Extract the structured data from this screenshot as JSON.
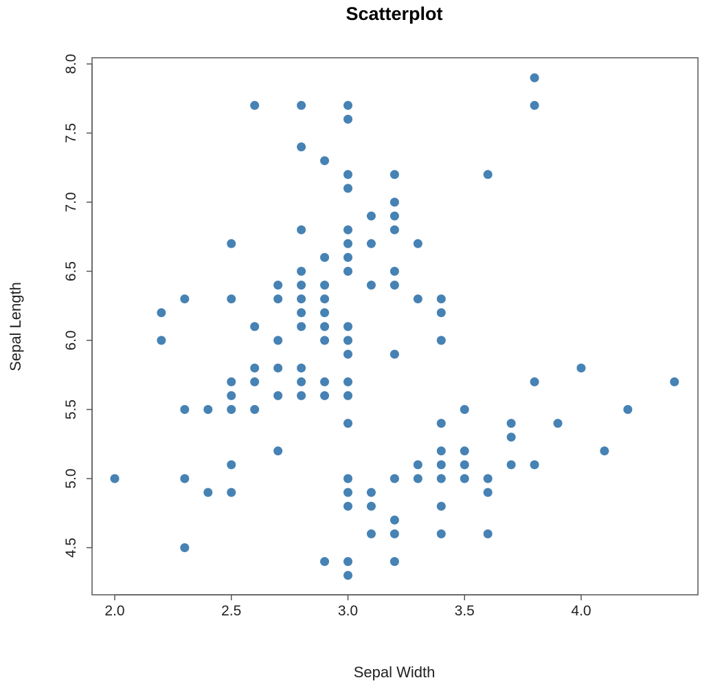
{
  "chart_data": {
    "type": "scatter",
    "title": "Scatterplot",
    "xlabel": "Sepal Width",
    "ylabel": "Sepal Length",
    "xlim": [
      1.9,
      4.5
    ],
    "ylim": [
      4.2,
      8.0
    ],
    "xticks": [
      2.0,
      2.5,
      3.0,
      3.5,
      4.0
    ],
    "xtick_labels": [
      "2.0",
      "2.5",
      "3.0",
      "3.5",
      "4.0"
    ],
    "yticks": [
      4.5,
      5.0,
      5.5,
      6.0,
      6.5,
      7.0,
      7.5,
      8.0
    ],
    "ytick_labels": [
      "4.5",
      "5.0",
      "5.5",
      "6.0",
      "6.5",
      "7.0",
      "7.5",
      "8.0"
    ],
    "grid": false,
    "color": "#4682b4",
    "points": [
      [
        2.0,
        5.0
      ],
      [
        2.2,
        6.2
      ],
      [
        2.2,
        6.0
      ],
      [
        2.3,
        6.3
      ],
      [
        2.3,
        5.5
      ],
      [
        2.3,
        5.0
      ],
      [
        2.3,
        4.5
      ],
      [
        2.4,
        5.5
      ],
      [
        2.4,
        4.9
      ],
      [
        2.5,
        6.7
      ],
      [
        2.5,
        6.3
      ],
      [
        2.5,
        5.7
      ],
      [
        2.5,
        5.6
      ],
      [
        2.5,
        5.5
      ],
      [
        2.5,
        5.1
      ],
      [
        2.5,
        4.9
      ],
      [
        2.6,
        7.7
      ],
      [
        2.6,
        6.1
      ],
      [
        2.6,
        5.8
      ],
      [
        2.6,
        5.7
      ],
      [
        2.6,
        5.5
      ],
      [
        2.7,
        6.4
      ],
      [
        2.7,
        6.3
      ],
      [
        2.7,
        6.0
      ],
      [
        2.7,
        5.8
      ],
      [
        2.7,
        5.6
      ],
      [
        2.7,
        5.2
      ],
      [
        2.8,
        7.7
      ],
      [
        2.8,
        7.4
      ],
      [
        2.8,
        6.8
      ],
      [
        2.8,
        6.5
      ],
      [
        2.8,
        6.4
      ],
      [
        2.8,
        6.3
      ],
      [
        2.8,
        6.2
      ],
      [
        2.8,
        6.1
      ],
      [
        2.8,
        5.8
      ],
      [
        2.8,
        5.7
      ],
      [
        2.8,
        5.6
      ],
      [
        2.9,
        7.3
      ],
      [
        2.9,
        6.6
      ],
      [
        2.9,
        6.4
      ],
      [
        2.9,
        6.3
      ],
      [
        2.9,
        6.2
      ],
      [
        2.9,
        6.1
      ],
      [
        2.9,
        6.0
      ],
      [
        2.9,
        5.7
      ],
      [
        2.9,
        5.6
      ],
      [
        2.9,
        4.4
      ],
      [
        3.0,
        7.7
      ],
      [
        3.0,
        7.6
      ],
      [
        3.0,
        7.2
      ],
      [
        3.0,
        7.1
      ],
      [
        3.0,
        6.8
      ],
      [
        3.0,
        6.7
      ],
      [
        3.0,
        6.6
      ],
      [
        3.0,
        6.5
      ],
      [
        3.0,
        6.1
      ],
      [
        3.0,
        6.0
      ],
      [
        3.0,
        5.9
      ],
      [
        3.0,
        5.7
      ],
      [
        3.0,
        5.6
      ],
      [
        3.0,
        5.4
      ],
      [
        3.0,
        5.0
      ],
      [
        3.0,
        4.9
      ],
      [
        3.0,
        4.8
      ],
      [
        3.0,
        4.4
      ],
      [
        3.0,
        4.3
      ],
      [
        3.1,
        6.9
      ],
      [
        3.1,
        6.7
      ],
      [
        3.1,
        6.4
      ],
      [
        3.1,
        4.9
      ],
      [
        3.1,
        4.8
      ],
      [
        3.1,
        4.6
      ],
      [
        3.2,
        7.2
      ],
      [
        3.2,
        7.0
      ],
      [
        3.2,
        6.9
      ],
      [
        3.2,
        6.8
      ],
      [
        3.2,
        6.5
      ],
      [
        3.2,
        6.4
      ],
      [
        3.2,
        5.9
      ],
      [
        3.2,
        5.0
      ],
      [
        3.2,
        4.7
      ],
      [
        3.2,
        4.6
      ],
      [
        3.2,
        4.4
      ],
      [
        3.3,
        6.7
      ],
      [
        3.3,
        6.3
      ],
      [
        3.3,
        5.1
      ],
      [
        3.3,
        5.0
      ],
      [
        3.4,
        6.3
      ],
      [
        3.4,
        6.2
      ],
      [
        3.4,
        6.0
      ],
      [
        3.4,
        5.4
      ],
      [
        3.4,
        5.2
      ],
      [
        3.4,
        5.1
      ],
      [
        3.4,
        5.0
      ],
      [
        3.4,
        4.8
      ],
      [
        3.4,
        4.6
      ],
      [
        3.5,
        5.5
      ],
      [
        3.5,
        5.2
      ],
      [
        3.5,
        5.1
      ],
      [
        3.5,
        5.0
      ],
      [
        3.6,
        7.2
      ],
      [
        3.6,
        5.0
      ],
      [
        3.6,
        4.9
      ],
      [
        3.6,
        4.6
      ],
      [
        3.7,
        5.4
      ],
      [
        3.7,
        5.3
      ],
      [
        3.7,
        5.1
      ],
      [
        3.8,
        7.9
      ],
      [
        3.8,
        7.7
      ],
      [
        3.8,
        5.7
      ],
      [
        3.8,
        5.1
      ],
      [
        3.9,
        5.4
      ],
      [
        4.0,
        5.8
      ],
      [
        4.1,
        5.2
      ],
      [
        4.2,
        5.5
      ],
      [
        4.4,
        5.7
      ]
    ]
  }
}
